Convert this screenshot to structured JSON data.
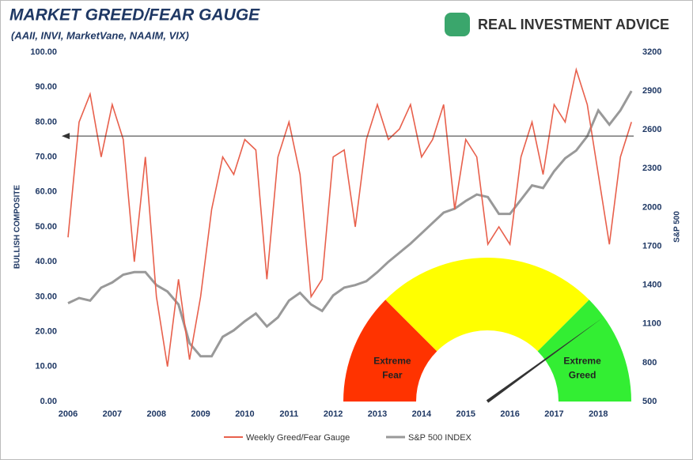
{
  "chart_data": {
    "type": "line",
    "title": "MARKET GREED/FEAR GAUGE",
    "subtitle": "(AAII, INVI, MarketVane, NAAIM, VIX)",
    "logo": "REAL INVESTMENT ADVICE",
    "ylabel": "BULLISH COMPOSITE",
    "y2label": "S&P 500",
    "x": [
      2006,
      2006.25,
      2006.5,
      2006.75,
      2007,
      2007.25,
      2007.5,
      2007.75,
      2008,
      2008.25,
      2008.5,
      2008.75,
      2009,
      2009.25,
      2009.5,
      2009.75,
      2010,
      2010.25,
      2010.5,
      2010.75,
      2011,
      2011.25,
      2011.5,
      2011.75,
      2012,
      2012.25,
      2012.5,
      2012.75,
      2013,
      2013.25,
      2013.5,
      2013.75,
      2014,
      2014.25,
      2014.5,
      2014.75,
      2015,
      2015.25,
      2015.5,
      2015.75,
      2016,
      2016.25,
      2016.5,
      2016.75,
      2017,
      2017.25,
      2017.5,
      2017.75,
      2018,
      2018.25,
      2018.5,
      2018.75
    ],
    "xlim": [
      2006,
      2018.8
    ],
    "xticks": [
      2006,
      2007,
      2008,
      2009,
      2010,
      2011,
      2012,
      2013,
      2014,
      2015,
      2016,
      2017,
      2018
    ],
    "ylim": [
      0,
      100
    ],
    "yticks": [
      {
        "value": 0,
        "label": "0.00"
      },
      {
        "value": 10,
        "label": "10.00"
      },
      {
        "value": 20,
        "label": "20.00"
      },
      {
        "value": 30,
        "label": "30.00"
      },
      {
        "value": 40,
        "label": "40.00"
      },
      {
        "value": 50,
        "label": "50.00"
      },
      {
        "value": 60,
        "label": "60.00"
      },
      {
        "value": 70,
        "label": "70.00"
      },
      {
        "value": 80,
        "label": "80.00"
      },
      {
        "value": 90,
        "label": "90.00"
      },
      {
        "value": 100,
        "label": "100.00"
      }
    ],
    "y2lim": [
      500,
      3200
    ],
    "y2ticks": [
      500,
      800,
      1100,
      1400,
      1700,
      2000,
      2300,
      2600,
      2900,
      3200
    ],
    "series": [
      {
        "name": "Weekly Greed/Fear Gauge",
        "color": "#e8604c",
        "values": [
          47,
          80,
          88,
          70,
          85,
          75,
          40,
          70,
          30,
          10,
          35,
          12,
          30,
          55,
          70,
          65,
          75,
          72,
          35,
          70,
          80,
          65,
          30,
          35,
          70,
          72,
          50,
          75,
          85,
          75,
          78,
          85,
          70,
          75,
          85,
          55,
          75,
          70,
          45,
          50,
          45,
          70,
          80,
          65,
          85,
          80,
          95,
          85,
          65,
          45,
          70,
          80
        ]
      },
      {
        "name": "S&P 500 INDEX",
        "color": "#999999",
        "axis": "y2",
        "values": [
          1260,
          1300,
          1280,
          1380,
          1420,
          1480,
          1500,
          1500,
          1400,
          1350,
          1250,
          950,
          850,
          850,
          1000,
          1050,
          1120,
          1180,
          1080,
          1150,
          1280,
          1340,
          1250,
          1200,
          1320,
          1380,
          1400,
          1430,
          1500,
          1580,
          1650,
          1720,
          1800,
          1880,
          1960,
          1990,
          2050,
          2100,
          2080,
          1950,
          1950,
          2060,
          2170,
          2150,
          2280,
          2380,
          2440,
          2550,
          2750,
          2640,
          2750,
          2900
        ]
      }
    ],
    "reference_line": 76,
    "gauge": {
      "value": 80,
      "zones": [
        {
          "label": "Extreme Fear",
          "from": 0,
          "to": 25,
          "color": "#ff3300"
        },
        {
          "from": 25,
          "to": 75,
          "color": "#ffff00"
        },
        {
          "label": "Extreme Greed",
          "from": 75,
          "to": 100,
          "color": "#33ee33"
        }
      ]
    }
  }
}
